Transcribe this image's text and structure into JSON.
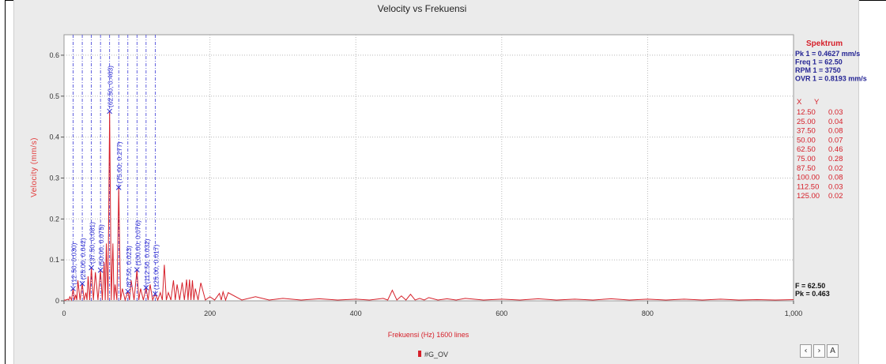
{
  "chart_data": {
    "type": "line",
    "title": "Velocity vs Frekuensi",
    "xlabel": "Frekuensi (Hz) 1600 lines",
    "ylabel": "Velocity (mm/s)",
    "xlim": [
      0,
      1000
    ],
    "ylim": [
      0,
      0.65
    ],
    "x_ticks": [
      0,
      200,
      400,
      600,
      800,
      1000
    ],
    "x_tick_labels": [
      "0",
      "200",
      "400",
      "600",
      "800",
      "1,000"
    ],
    "y_ticks": [
      0,
      0.1,
      0.2,
      0.3,
      0.4,
      0.5,
      0.6
    ],
    "y_tick_labels": [
      "0",
      "0.1",
      "0.2",
      "0.3",
      "0.4",
      "0.5",
      "0.6"
    ],
    "grid": true,
    "series_color": "#d6202a",
    "marker_color": "#2b2bd0",
    "series": [
      {
        "name": "#G_OV",
        "points": [
          [
            0,
            0.002
          ],
          [
            5,
            0.004
          ],
          [
            8,
            0.01
          ],
          [
            12.5,
            0.03
          ],
          [
            16,
            0.015
          ],
          [
            19,
            0.05
          ],
          [
            25,
            0.042
          ],
          [
            30,
            0.02
          ],
          [
            33,
            0.06
          ],
          [
            37.5,
            0.081
          ],
          [
            43,
            0.07
          ],
          [
            50,
            0.075
          ],
          [
            55,
            0.095
          ],
          [
            58,
            0.14
          ],
          [
            62.5,
            0.463
          ],
          [
            67,
            0.14
          ],
          [
            70,
            0.04
          ],
          [
            75,
            0.277
          ],
          [
            80,
            0.03
          ],
          [
            87.5,
            0.023
          ],
          [
            92,
            0.05
          ],
          [
            100,
            0.076
          ],
          [
            105,
            0.03
          ],
          [
            112.5,
            0.032
          ],
          [
            118,
            0.04
          ],
          [
            125,
            0.017
          ],
          [
            132,
            0.02
          ],
          [
            137.5,
            0.088
          ],
          [
            143,
            0.02
          ],
          [
            150,
            0.05
          ],
          [
            155,
            0.04
          ],
          [
            162,
            0.045
          ],
          [
            168,
            0.052
          ],
          [
            172,
            0.052
          ],
          [
            176,
            0.05
          ],
          [
            180,
            0.03
          ],
          [
            187.5,
            0.044
          ],
          [
            200,
            0.01
          ],
          [
            213,
            0.018
          ],
          [
            218,
            0.022
          ],
          [
            225,
            0.02
          ],
          [
            262.5,
            0.01
          ],
          [
            300,
            0.006
          ],
          [
            350,
            0.005
          ],
          [
            400,
            0.004
          ],
          [
            437.5,
            0.006
          ],
          [
            450,
            0.026
          ],
          [
            462.5,
            0.012
          ],
          [
            475,
            0.016
          ],
          [
            487.5,
            0.006
          ],
          [
            500,
            0.008
          ],
          [
            525,
            0.005
          ],
          [
            550,
            0.006
          ],
          [
            600,
            0.004
          ],
          [
            650,
            0.005
          ],
          [
            700,
            0.004
          ],
          [
            750,
            0.005
          ],
          [
            800,
            0.004
          ],
          [
            850,
            0.004
          ],
          [
            900,
            0.004
          ],
          [
            950,
            0.003
          ],
          [
            1000,
            0.003
          ]
        ]
      }
    ],
    "peaks": [
      {
        "x": 12.5,
        "y": 0.03,
        "label": "(12.50, 0.030)"
      },
      {
        "x": 25.0,
        "y": 0.042,
        "label": "(25.00, 0.042)"
      },
      {
        "x": 37.5,
        "y": 0.081,
        "label": "(37.50, 0.081)"
      },
      {
        "x": 50.0,
        "y": 0.075,
        "label": "(50.00, 0.075)"
      },
      {
        "x": 62.5,
        "y": 0.463,
        "label": "(62.50, 0.463)"
      },
      {
        "x": 75.0,
        "y": 0.277,
        "label": "(75.00, 0.277)"
      },
      {
        "x": 87.5,
        "y": 0.023,
        "label": "(87.50, 0.023)"
      },
      {
        "x": 100.0,
        "y": 0.076,
        "label": "(100.00, 0.076)"
      },
      {
        "x": 112.5,
        "y": 0.032,
        "label": "(112.50, 0.032)"
      },
      {
        "x": 125.0,
        "y": 0.017,
        "label": "(125.00, 0.017)"
      }
    ],
    "legend": {
      "placement": "bottom-center",
      "entries": [
        "#G_OV"
      ]
    }
  },
  "side_panel": {
    "title": "Spektrum",
    "info_lines": [
      "Pk 1 = 0.4627 mm/s",
      "Freq 1 = 62.50",
      "RPM 1 = 3750",
      "OVR 1 = 0.8193 mm/s"
    ],
    "table_header_x": "X",
    "table_header_y": "Y",
    "table_rows": [
      [
        "12.50",
        "0.03"
      ],
      [
        "25.00",
        "0.04"
      ],
      [
        "37.50",
        "0.08"
      ],
      [
        "50.00",
        "0.07"
      ],
      [
        "62.50",
        "0.46"
      ],
      [
        "75.00",
        "0.28"
      ],
      [
        "87.50",
        "0.02"
      ],
      [
        "100.00",
        "0.08"
      ],
      [
        "112.50",
        "0.03"
      ],
      [
        "125.00",
        "0.02"
      ]
    ],
    "cursor_f": "F = 62.50",
    "cursor_pk": "Pk = 0.463"
  },
  "nav_buttons": {
    "prev": "‹",
    "next": "›",
    "auto": "A"
  }
}
